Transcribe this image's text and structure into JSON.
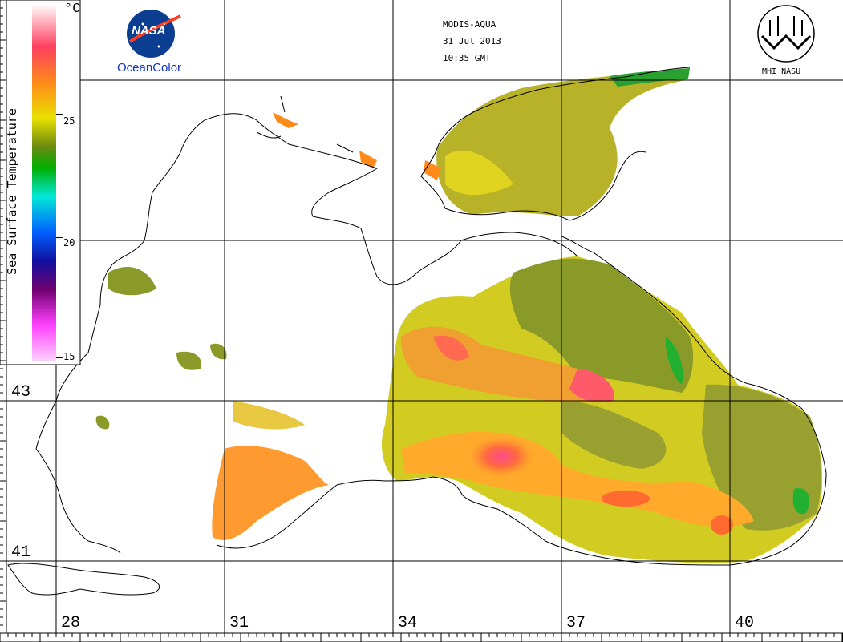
{
  "header": {
    "sensor": "MODIS-AQUA",
    "date": "31 Jul 2013",
    "time": "10:35 GMT"
  },
  "logos": {
    "nasa": "NASA",
    "oceancolor": "OceanColor",
    "mhi": "MHI NASU"
  },
  "colorbar": {
    "title": "Sea Surface Temperature",
    "unit": "°C",
    "ticks": [
      "25",
      "20",
      "15"
    ],
    "range": [
      15,
      30
    ],
    "colors": [
      "#ffffff",
      "#ff5555",
      "#ff8a1a",
      "#e8e000",
      "#7a9a10",
      "#00aa00",
      "#00e0e0",
      "#0050ff",
      "#000080",
      "#800080",
      "#ff40ff",
      "#ffc8ff"
    ]
  },
  "grid": {
    "latitudes": [
      "43",
      "41"
    ],
    "longitudes": [
      "28",
      "31",
      "34",
      "37",
      "40"
    ]
  },
  "colors": {
    "land": "#ffffff",
    "coast": "#000000",
    "warm": "#ff7a2a",
    "hot": "#ff4a7a",
    "mild": "#d8d420",
    "cool": "#8a9a28",
    "green": "#22b030"
  }
}
